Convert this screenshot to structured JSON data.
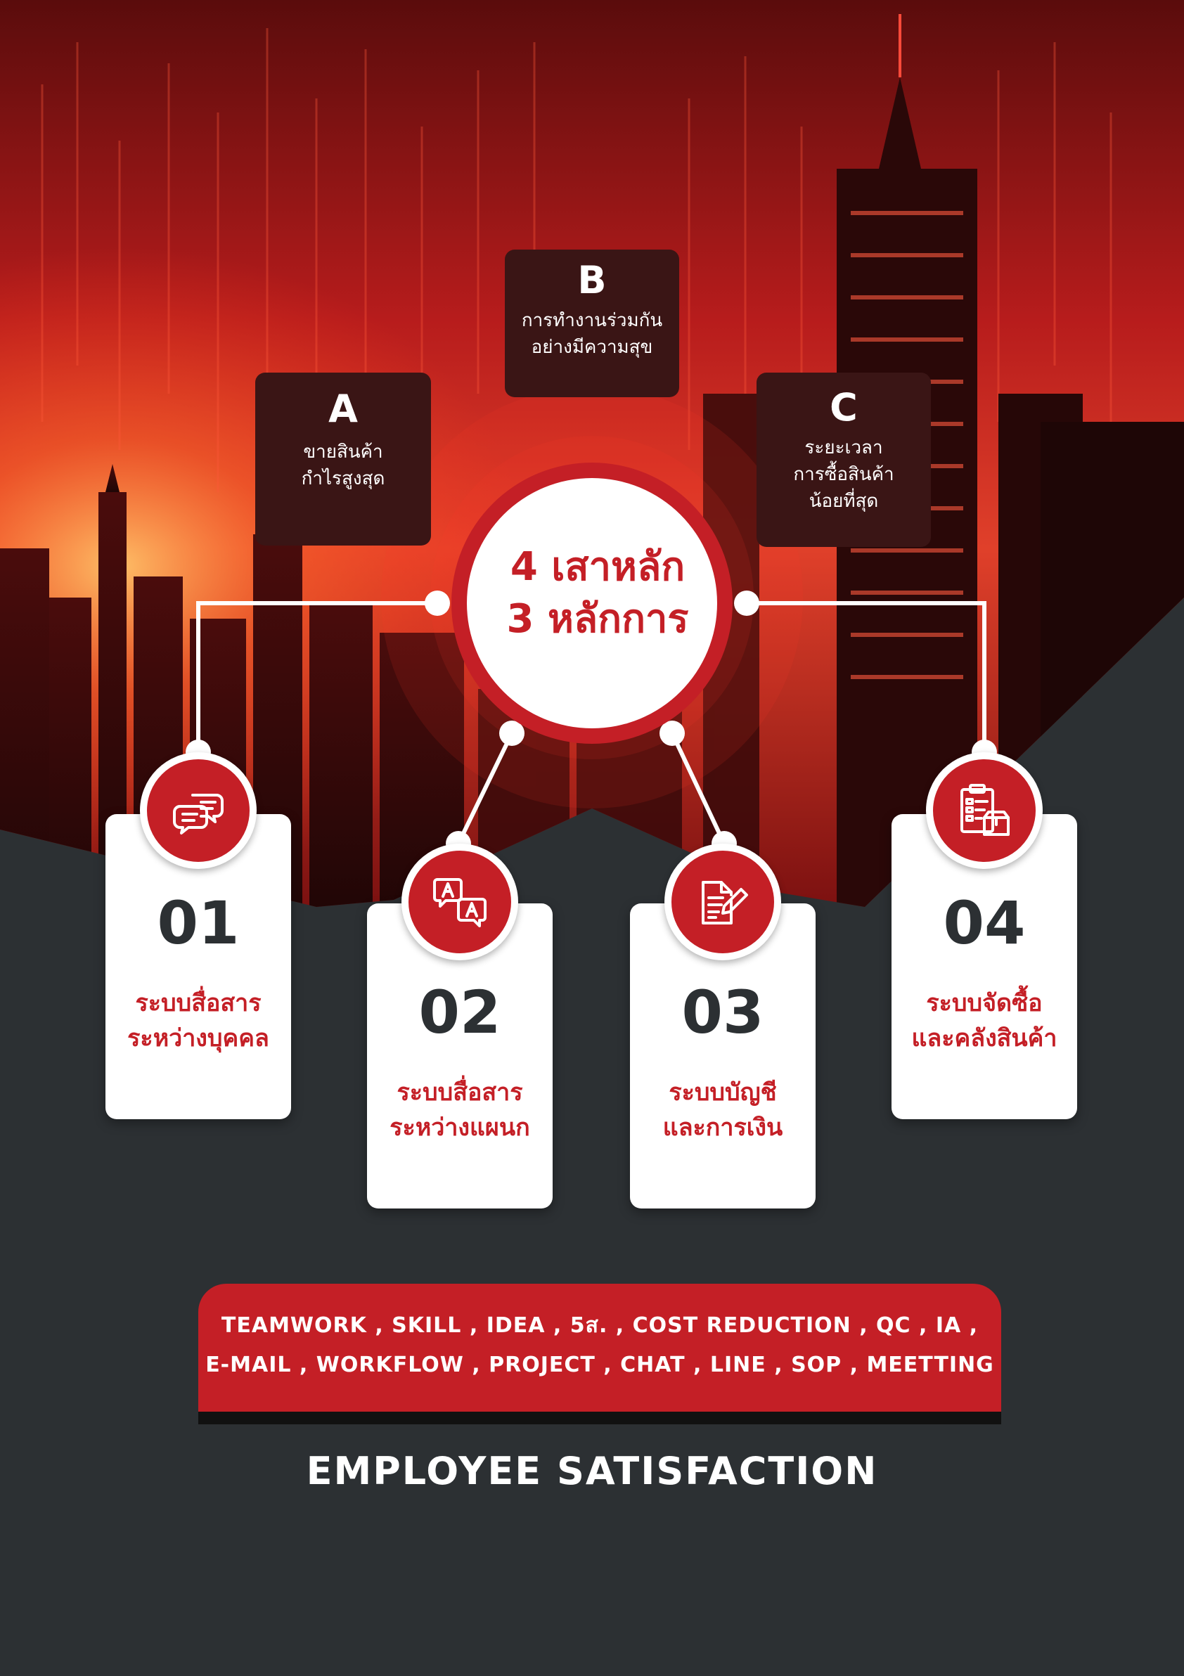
{
  "principles": [
    {
      "letter": "A",
      "text": "ขายสินค้า\nกำไรสูงสุด"
    },
    {
      "letter": "B",
      "text": "การทำงานร่วมกัน\nอย่างมีความสุข"
    },
    {
      "letter": "C",
      "text": "ระยะเวลา\nการซื้อสินค้า\nน้อยที่สุด"
    }
  ],
  "hub": {
    "text": "4 เสาหลัก\n3 หลักการ"
  },
  "pillars": [
    {
      "number": "01",
      "text": "ระบบสื่อสาร\nระหว่างบุคคล",
      "icon": "chat-bubbles-icon"
    },
    {
      "number": "02",
      "text": "ระบบสื่อสาร\nระหว่างแผนก",
      "icon": "translate-icon"
    },
    {
      "number": "03",
      "text": "ระบบบัญชี\nและการเงิน",
      "icon": "document-pen-icon"
    },
    {
      "number": "04",
      "text": "ระบบจัดซื้อ\nและคลังสินค้า",
      "icon": "clipboard-box-icon"
    }
  ],
  "tags": {
    "line1": "TEAMWORK , SKILL , IDEA , 5ส. , COST REDUCTION , QC , IA ,",
    "line2": "E-MAIL , WORKFLOW , PROJECT , CHAT , LINE , SOP , MEETTING"
  },
  "footer": {
    "text": "EMPLOYEE SATISFACTION"
  },
  "colors": {
    "accent": "#c41f26",
    "dark": "#2c3033",
    "principle_bg": "#3a1515"
  }
}
